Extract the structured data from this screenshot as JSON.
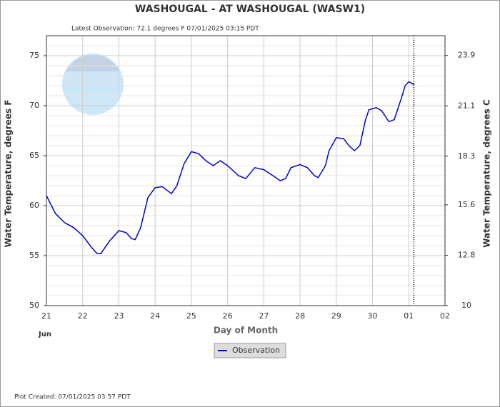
{
  "chart_data": {
    "type": "line",
    "title": "WASHOUGAL - AT WASHOUGAL  (WASW1)",
    "subtitle": "Latest Observation: 72.1 degrees F 07/01/2025 03:15 PDT",
    "xlabel": "Day of Month",
    "xlabel_month": "Jun",
    "ylabel": "Water Temperature, degrees F",
    "y2label": "Water Temperature, degrees C",
    "footer": "Plot Created: 07/01/2025 03:57 PDT",
    "xlim": [
      21,
      32
    ],
    "xticks": [
      21,
      22,
      23,
      24,
      25,
      26,
      27,
      28,
      29,
      30,
      {
        "value": 31,
        "label": "01"
      },
      {
        "value": 32,
        "label": "02"
      }
    ],
    "ylim": [
      50,
      77
    ],
    "yticks": [
      50,
      55,
      60,
      65,
      70,
      75
    ],
    "y_minor_step": 1,
    "y2lim": [
      10,
      25
    ],
    "y2ticks": [
      10,
      12.8,
      15.6,
      18.3,
      21.1,
      23.9
    ],
    "grid": true,
    "latest_x": 31.14,
    "x": [
      21.0,
      21.25,
      21.5,
      21.75,
      22.0,
      22.25,
      22.4,
      22.5,
      22.75,
      23.0,
      23.2,
      23.35,
      23.45,
      23.6,
      23.8,
      24.0,
      24.2,
      24.45,
      24.6,
      24.8,
      25.0,
      25.2,
      25.4,
      25.6,
      25.8,
      26.0,
      26.3,
      26.5,
      26.75,
      27.0,
      27.25,
      27.45,
      27.6,
      27.75,
      28.0,
      28.2,
      28.4,
      28.5,
      28.7,
      28.8,
      29.0,
      29.2,
      29.35,
      29.5,
      29.65,
      29.8,
      29.9,
      30.1,
      30.25,
      30.45,
      30.6,
      30.8,
      30.9,
      31.0,
      31.1,
      31.15
    ],
    "series": [
      {
        "name": "Observation",
        "color": "#0000cc",
        "values": [
          61.0,
          59.2,
          58.3,
          57.8,
          57.0,
          55.8,
          55.2,
          55.2,
          56.5,
          57.5,
          57.3,
          56.7,
          56.6,
          57.8,
          60.8,
          61.8,
          61.9,
          61.2,
          62.0,
          64.2,
          65.4,
          65.2,
          64.5,
          64.0,
          64.5,
          64.0,
          63.0,
          62.7,
          63.8,
          63.6,
          63.0,
          62.5,
          62.7,
          63.8,
          64.1,
          63.8,
          63.0,
          62.8,
          64.0,
          65.5,
          66.8,
          66.7,
          66.0,
          65.5,
          66.0,
          68.5,
          69.6,
          69.8,
          69.5,
          68.4,
          68.6,
          70.8,
          72.0,
          72.4,
          72.2,
          72.1
        ]
      }
    ]
  }
}
